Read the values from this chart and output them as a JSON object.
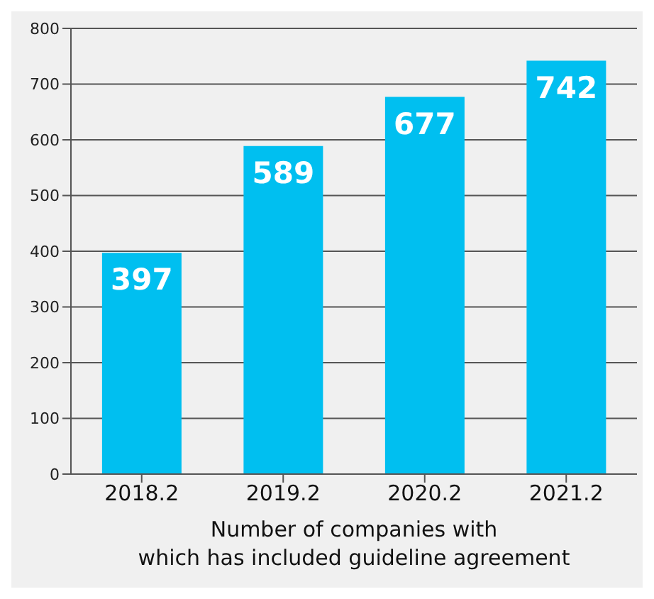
{
  "chart_data": {
    "type": "bar",
    "xlabel": "Number of companies with which has included guideline agreement",
    "categories": [
      "2018.2",
      "2019.2",
      "2020.2",
      "2021.2"
    ],
    "values": [
      397,
      589,
      677,
      742
    ],
    "color": "#00bff0",
    "ylim": [
      0,
      800
    ],
    "yticks": [
      0,
      100,
      200,
      300,
      400,
      500,
      600,
      700,
      800
    ],
    "grid": "y",
    "data_labels": true
  }
}
